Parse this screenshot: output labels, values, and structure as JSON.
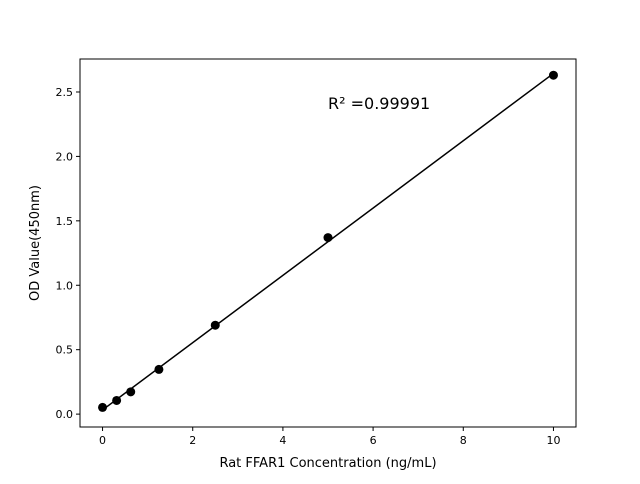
{
  "chart_data": {
    "type": "scatter",
    "title": "",
    "xlabel": "Rat FFAR1 Concentration (ng/mL)",
    "ylabel": "OD Value(450nm)",
    "annotation": "R² =0.99991",
    "xlim": [
      -0.5,
      10.5
    ],
    "ylim": [
      -0.1,
      2.756
    ],
    "xticks": [
      0,
      2,
      4,
      6,
      8,
      10
    ],
    "yticks": [
      0.0,
      0.5,
      1.0,
      1.5,
      2.0,
      2.5
    ],
    "ytick_labels": [
      "0.0",
      "0.5",
      "1.0",
      "1.5",
      "2.0",
      "2.5"
    ],
    "grid": false,
    "x": [
      0,
      0.3125,
      0.625,
      1.25,
      2.5,
      5,
      10
    ],
    "y": [
      0.052,
      0.106,
      0.173,
      0.347,
      0.69,
      1.37,
      2.63
    ],
    "fit": "linear",
    "marker_color": "#000000",
    "line_color": "#000000"
  }
}
